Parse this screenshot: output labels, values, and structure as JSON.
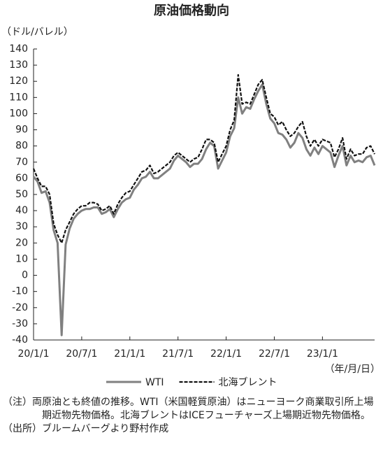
{
  "chart_data": {
    "type": "line",
    "title": "原油価格動向",
    "y_label": "（ドル/バレル）",
    "x_label": "（年/月/日）",
    "categories": [
      "20/1/1",
      null,
      null,
      null,
      null,
      null,
      null,
      null,
      null,
      null,
      null,
      null,
      "20/7/1",
      null,
      null,
      null,
      null,
      null,
      null,
      null,
      null,
      null,
      null,
      null,
      "21/1/1",
      null,
      null,
      null,
      null,
      null,
      null,
      null,
      null,
      null,
      null,
      null,
      "21/7/1",
      null,
      null,
      null,
      null,
      null,
      null,
      null,
      null,
      null,
      null,
      null,
      "22/1/1",
      null,
      null,
      null,
      null,
      null,
      null,
      null,
      null,
      null,
      null,
      null,
      "22/7/1",
      null,
      null,
      null,
      null,
      null,
      null,
      null,
      null,
      null,
      null,
      null,
      "23/1/1",
      null,
      null,
      null,
      null,
      null,
      null,
      null,
      null,
      null,
      null,
      null,
      null,
      null
    ],
    "series": [
      {
        "name": "WTI",
        "color": "#808080",
        "dash": false,
        "values": [
          61,
          58,
          51,
          52,
          45,
          28,
          20,
          -37,
          19,
          29,
          35,
          38,
          40,
          41,
          41,
          42,
          42,
          38,
          39,
          41,
          36,
          41,
          45,
          47,
          48,
          53,
          56,
          60,
          61,
          64,
          60,
          60,
          62,
          64,
          66,
          71,
          74,
          72,
          70,
          67,
          69,
          69,
          72,
          78,
          82,
          80,
          66,
          71,
          76,
          86,
          91,
          110,
          100,
          104,
          103,
          109,
          114,
          118,
          106,
          97,
          94,
          88,
          87,
          84,
          79,
          82,
          88,
          85,
          78,
          74,
          79,
          75,
          80,
          78,
          76,
          67,
          74,
          80,
          68,
          74,
          70,
          71,
          70,
          73,
          74,
          68
        ]
      },
      {
        "name": "北海ブレント",
        "color": "#111111",
        "dash": true,
        "values": [
          66,
          60,
          55,
          55,
          50,
          32,
          25,
          20,
          28,
          33,
          38,
          41,
          43,
          43,
          45,
          45,
          44,
          40,
          41,
          43,
          38,
          44,
          48,
          51,
          52,
          56,
          60,
          64,
          65,
          68,
          63,
          64,
          66,
          68,
          70,
          74,
          76,
          74,
          72,
          70,
          72,
          73,
          78,
          84,
          84,
          82,
          70,
          75,
          80,
          90,
          96,
          124,
          106,
          107,
          106,
          112,
          118,
          121,
          110,
          100,
          98,
          93,
          95,
          90,
          86,
          88,
          92,
          95,
          86,
          80,
          84,
          80,
          84,
          83,
          82,
          73,
          78,
          85,
          72,
          78,
          74,
          75,
          75,
          79,
          80,
          75
        ]
      }
    ],
    "ylim": [
      -40,
      140
    ],
    "yticks": [
      -40,
      -30,
      -20,
      -10,
      0,
      10,
      20,
      30,
      40,
      50,
      60,
      70,
      80,
      90,
      100,
      110,
      120,
      130,
      140
    ],
    "grid": false,
    "legend": "bottom",
    "notes": [
      "（注）両原油とも終値の推移。WTI（米国軽質原油）はニューヨーク商業取引所上場期近物先物価格。北海ブレントはICEフューチャーズ上場期近物先物価格。",
      "（出所）ブルームバーグより野村作成"
    ]
  }
}
